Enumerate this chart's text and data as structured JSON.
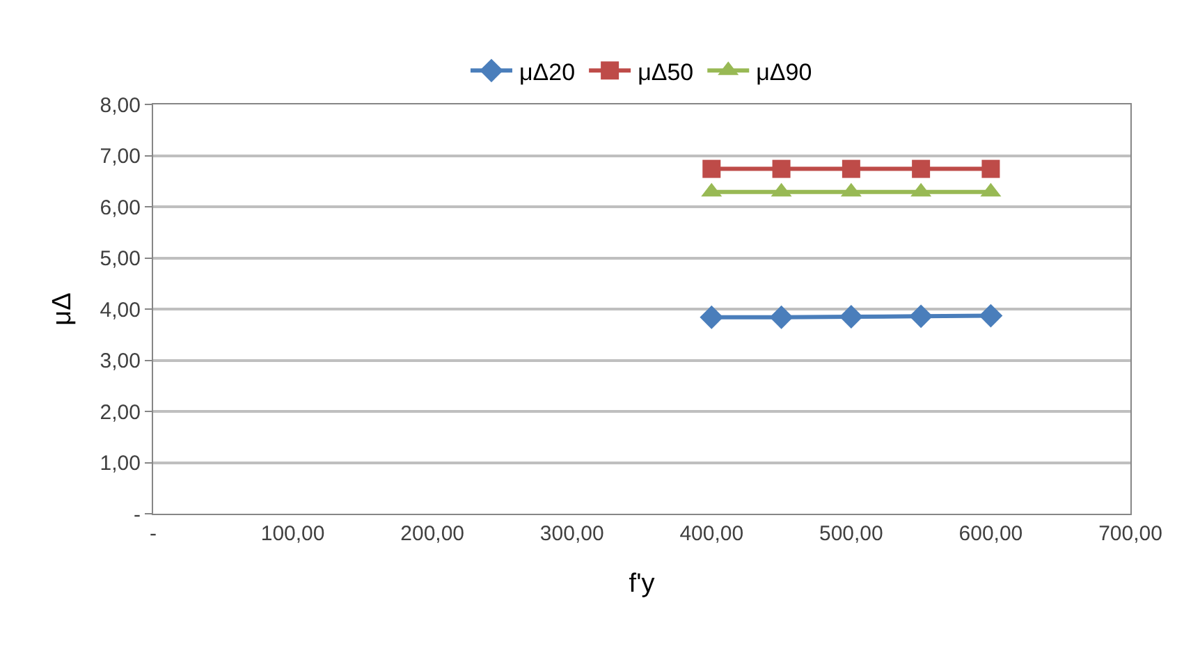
{
  "chart_data": {
    "type": "line",
    "xlabel": "f'y",
    "ylabel": "μΔ",
    "x": [
      400,
      450,
      500,
      550,
      600
    ],
    "series": [
      {
        "name": "μΔ20",
        "color": "#4a7ebb",
        "marker": "diamond",
        "values": [
          3.84,
          3.84,
          3.85,
          3.86,
          3.87
        ]
      },
      {
        "name": "μΔ50",
        "color": "#be4b48",
        "marker": "square",
        "values": [
          6.74,
          6.74,
          6.74,
          6.74,
          6.74
        ]
      },
      {
        "name": "μΔ90",
        "color": "#98b954",
        "marker": "triangle",
        "values": [
          6.29,
          6.29,
          6.29,
          6.29,
          6.29
        ]
      }
    ],
    "xlim": [
      0,
      700
    ],
    "xticks": [
      {
        "value": 0,
        "label": "-"
      },
      {
        "value": 100,
        "label": "100,00"
      },
      {
        "value": 200,
        "label": "200,00"
      },
      {
        "value": 300,
        "label": "300,00"
      },
      {
        "value": 400,
        "label": "400,00"
      },
      {
        "value": 500,
        "label": "500,00"
      },
      {
        "value": 600,
        "label": "600,00"
      },
      {
        "value": 700,
        "label": "700,00"
      }
    ],
    "ylim": [
      0,
      8
    ],
    "yticks": [
      {
        "value": 0,
        "label": "-"
      },
      {
        "value": 1,
        "label": "1,00"
      },
      {
        "value": 2,
        "label": "2,00"
      },
      {
        "value": 3,
        "label": "3,00"
      },
      {
        "value": 4,
        "label": "4,00"
      },
      {
        "value": 5,
        "label": "5,00"
      },
      {
        "value": 6,
        "label": "6,00"
      },
      {
        "value": 7,
        "label": "7,00"
      },
      {
        "value": 8,
        "label": "8,00"
      }
    ],
    "grid": "y",
    "legend": "top",
    "line_style": "solid"
  }
}
